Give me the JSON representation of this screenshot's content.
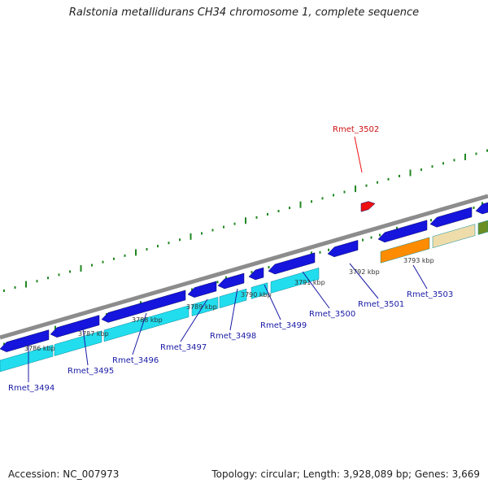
{
  "title": "Ralstonia metallidurans CH34 chromosome 1, complete sequence",
  "footer": {
    "accession": "Accession: NC_007973",
    "summary": "Topology: circular; Length: 3,928,089 bp; Genes: 3,669"
  },
  "colors": {
    "backbone": "#8c8c8c",
    "gene_forward": "#1515dd",
    "gene_cds": "#22ddee",
    "gene_highlight": "#ee1111",
    "orange": "#ff8c00",
    "khaki": "#eeddaa",
    "olive": "#6b8e23",
    "ticks": "#228822",
    "labels": "#1a1aa6"
  },
  "scale": {
    "unit": "kbp",
    "labels": [
      "3786 kbp",
      "3787 kbp",
      "3788 kbp",
      "3789 kbp",
      "3790 kbp",
      "3791 kbp",
      "3792 kbp",
      "3793 kbp"
    ]
  },
  "genes": [
    {
      "name": "Rmet_3494"
    },
    {
      "name": "Rmet_3495"
    },
    {
      "name": "Rmet_3496"
    },
    {
      "name": "Rmet_3497"
    },
    {
      "name": "Rmet_3498"
    },
    {
      "name": "Rmet_3499"
    },
    {
      "name": "Rmet_3500"
    },
    {
      "name": "Rmet_3501"
    },
    {
      "name": "Rmet_3503"
    }
  ],
  "highlighted_gene": {
    "name": "Rmet_3502"
  }
}
